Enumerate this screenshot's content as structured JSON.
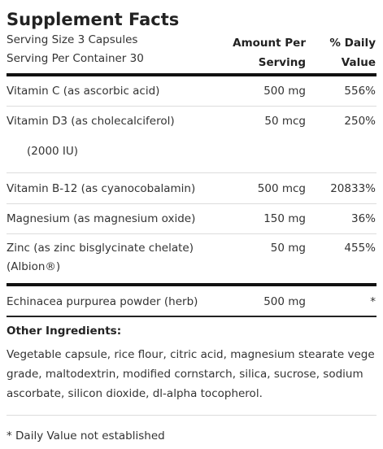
{
  "header": {
    "title": "Supplement Facts",
    "serving_size": "Serving Size 3 Capsules",
    "servings_per_container": "Serving Per Container 30"
  },
  "table": {
    "columns": [
      [],
      [
        "Amount Per",
        "Serving"
      ],
      [
        "% Daily",
        "Value"
      ]
    ],
    "rows": [
      {
        "name": [
          "Vitamin C (as ascorbic acid)"
        ],
        "amount": "500 mg",
        "daily_value": "556%"
      },
      {
        "name": [
          "Vitamin D3 (as cholecalciferol)",
          "(2000 IU)"
        ],
        "amount": "50 mcg",
        "daily_value": "250%"
      },
      {
        "name": [
          "Vitamin B-12 (as cyanocobalamin)"
        ],
        "amount": "500 mcg",
        "daily_value": "20833%"
      },
      {
        "name": [
          "Magnesium (as magnesium oxide)"
        ],
        "amount": "150 mg",
        "daily_value": "36%"
      },
      {
        "name": [
          "Zinc (as zinc bisglycinate chelate)",
          "(Albion®)"
        ],
        "amount": "50 mg",
        "daily_value": "455%"
      },
      {
        "name": [
          "Echinacea purpurea powder (herb)"
        ],
        "amount": "500 mg",
        "daily_value": "*"
      }
    ]
  },
  "other_ingredients": {
    "heading": "Other Ingredients:",
    "lines": [
      "Vegetable capsule, rice flour, citric acid, magnesium stearate vege",
      "grade, maltodextrin, modified cornstarch, silica, sucrose, sodium",
      "ascorbate, silicon dioxide, dl-alpha tocopherol."
    ]
  },
  "footnote": "* Daily Value not established"
}
